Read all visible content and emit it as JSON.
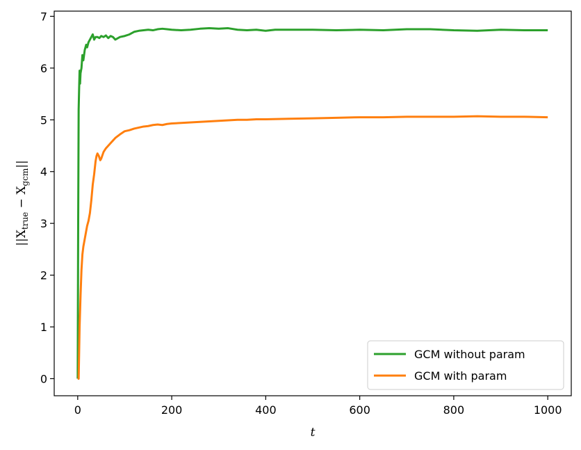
{
  "chart_data": {
    "type": "line",
    "title": "",
    "xlabel": "t",
    "ylabel": "||X_true − X_gcm||",
    "xlim": [
      -50,
      1050
    ],
    "ylim": [
      -0.33,
      7.1
    ],
    "xticks": [
      0,
      200,
      400,
      600,
      800,
      1000
    ],
    "yticks": [
      0,
      1,
      2,
      3,
      4,
      5,
      6,
      7
    ],
    "grid": false,
    "legend": {
      "position": "lower-right"
    },
    "series": [
      {
        "name": "GCM without param",
        "color": "#2ca02c",
        "x": [
          0,
          1,
          2,
          3,
          4,
          5,
          6,
          8,
          10,
          12,
          15,
          18,
          20,
          23,
          26,
          29,
          32,
          35,
          38,
          42,
          46,
          50,
          55,
          60,
          65,
          70,
          75,
          80,
          90,
          100,
          110,
          120,
          130,
          140,
          150,
          160,
          170,
          180,
          190,
          200,
          220,
          240,
          260,
          280,
          300,
          320,
          340,
          360,
          380,
          400,
          420,
          450,
          500,
          550,
          600,
          650,
          700,
          750,
          800,
          850,
          900,
          950,
          1000
        ],
        "y": [
          0.0,
          3.0,
          5.2,
          5.6,
          5.95,
          5.7,
          5.9,
          6.0,
          6.25,
          6.15,
          6.35,
          6.45,
          6.4,
          6.5,
          6.55,
          6.6,
          6.65,
          6.55,
          6.6,
          6.6,
          6.58,
          6.62,
          6.6,
          6.63,
          6.58,
          6.62,
          6.6,
          6.55,
          6.6,
          6.62,
          6.65,
          6.7,
          6.72,
          6.73,
          6.74,
          6.73,
          6.75,
          6.76,
          6.75,
          6.74,
          6.73,
          6.74,
          6.76,
          6.77,
          6.76,
          6.77,
          6.74,
          6.73,
          6.74,
          6.72,
          6.74,
          6.74,
          6.74,
          6.73,
          6.74,
          6.73,
          6.75,
          6.75,
          6.73,
          6.72,
          6.74,
          6.73,
          6.73
        ]
      },
      {
        "name": "GCM with param",
        "color": "#ff7f0e",
        "x": [
          0,
          1,
          2,
          3,
          4,
          5,
          6,
          8,
          10,
          12,
          15,
          18,
          20,
          23,
          26,
          29,
          32,
          35,
          38,
          40,
          42,
          45,
          48,
          50,
          55,
          60,
          65,
          70,
          75,
          80,
          90,
          100,
          110,
          120,
          130,
          140,
          150,
          160,
          170,
          180,
          190,
          200,
          220,
          240,
          260,
          280,
          300,
          320,
          340,
          360,
          380,
          400,
          450,
          500,
          550,
          600,
          650,
          700,
          750,
          800,
          850,
          900,
          950,
          1000
        ],
        "y": [
          0.0,
          0.0,
          0.0,
          0.5,
          1.0,
          1.3,
          1.6,
          2.1,
          2.4,
          2.55,
          2.7,
          2.85,
          2.95,
          3.05,
          3.2,
          3.45,
          3.75,
          3.95,
          4.2,
          4.3,
          4.35,
          4.3,
          4.22,
          4.25,
          4.38,
          4.45,
          4.5,
          4.55,
          4.6,
          4.65,
          4.72,
          4.78,
          4.8,
          4.83,
          4.85,
          4.87,
          4.88,
          4.9,
          4.91,
          4.9,
          4.92,
          4.93,
          4.94,
          4.95,
          4.96,
          4.97,
          4.98,
          4.99,
          5.0,
          5.0,
          5.01,
          5.01,
          5.02,
          5.03,
          5.04,
          5.05,
          5.05,
          5.06,
          5.06,
          5.06,
          5.07,
          5.06,
          5.06,
          5.05
        ]
      }
    ]
  }
}
